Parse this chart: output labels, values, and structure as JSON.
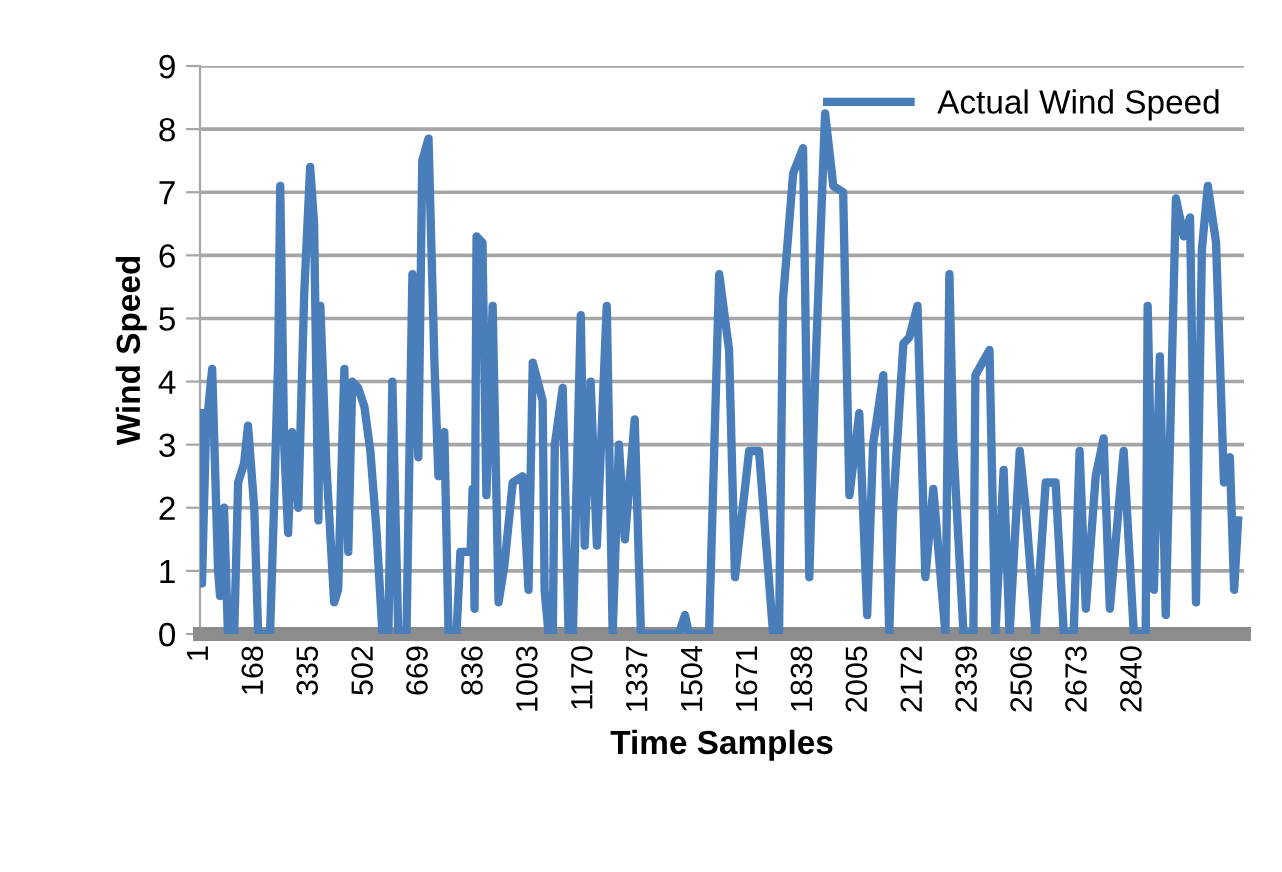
{
  "chart_data": {
    "type": "line",
    "xlabel": "Time Samples",
    "ylabel": "Wind Speed",
    "xlim": [
      1,
      3176
    ],
    "xticks": [
      1,
      168,
      335,
      502,
      669,
      836,
      1003,
      1170,
      1337,
      1504,
      1671,
      1838,
      2005,
      2172,
      2339,
      2506,
      2673,
      2840
    ],
    "ylim": [
      0,
      9
    ],
    "yticks": [
      0,
      1,
      2,
      3,
      4,
      5,
      6,
      7,
      8,
      9
    ],
    "grid": "y",
    "legend": "top right",
    "marker": "none",
    "line_style": "solid",
    "series": [
      {
        "name": "Actual Wind Speed",
        "color": "#4a7ebb",
        "x": [
          1,
          7,
          19,
          38,
          56,
          62,
          74,
          86,
          105,
          117,
          135,
          147,
          166,
          178,
          214,
          226,
          239,
          245,
          257,
          269,
          281,
          300,
          318,
          336,
          348,
          361,
          367,
          385,
          409,
          421,
          440,
          452,
          464,
          482,
          501,
          519,
          537,
          556,
          574,
          586,
          604,
          629,
          647,
          665,
          677,
          696,
          714,
          726,
          744,
          757,
          781,
          793,
          824,
          830,
          836,
          842,
          860,
          872,
          891,
          909,
          927,
          952,
          982,
          1000,
          1013,
          1043,
          1049,
          1061,
          1074,
          1080,
          1104,
          1122,
          1135,
          1159,
          1171,
          1189,
          1208,
          1238,
          1256,
          1275,
          1293,
          1323,
          1342,
          1457,
          1476,
          1488,
          1549,
          1580,
          1610,
          1628,
          1671,
          1701,
          1744,
          1762,
          1774,
          1805,
          1835,
          1854,
          1872,
          1902,
          1927,
          1957,
          1976,
          2006,
          2030,
          2048,
          2079,
          2097,
          2109,
          2140,
          2158,
          2183,
          2207,
          2231,
          2268,
          2280,
          2292,
          2323,
          2353,
          2359,
          2402,
          2420,
          2445,
          2463,
          2494,
          2512,
          2542,
          2573,
          2603,
          2628,
          2658,
          2676,
          2695,
          2725,
          2749,
          2768,
          2810,
          2841,
          2877,
          2883,
          2902,
          2920,
          2938,
          2969,
          2993,
          3012,
          3030,
          3048,
          3066,
          3091,
          3115,
          3133,
          3146,
          3158
        ],
        "values": [
          3.5,
          0.8,
          3.2,
          4.2,
          1.0,
          0.6,
          2.0,
          0,
          0,
          2.4,
          2.7,
          3.3,
          2.0,
          0,
          0,
          2.0,
          4.4,
          7.1,
          3.0,
          1.6,
          3.2,
          2.0,
          5.4,
          7.4,
          6.5,
          1.8,
          5.2,
          2.7,
          0.5,
          0.7,
          4.2,
          1.3,
          4.0,
          3.9,
          3.6,
          2.9,
          1.7,
          0,
          0,
          4.0,
          0,
          0,
          5.7,
          2.8,
          7.5,
          7.85,
          4.3,
          2.5,
          3.2,
          0,
          0,
          1.3,
          1.3,
          2.3,
          0.4,
          6.3,
          6.2,
          2.2,
          5.2,
          0.5,
          1.1,
          2.4,
          2.5,
          0.7,
          4.3,
          3.7,
          0.7,
          0,
          0,
          3.0,
          3.9,
          0,
          0,
          5.05,
          1.4,
          4.0,
          1.4,
          5.2,
          0,
          3.0,
          1.5,
          3.4,
          0,
          0,
          0.3,
          0,
          0,
          5.7,
          4.5,
          0.9,
          2.9,
          2.9,
          0,
          0,
          5.3,
          7.3,
          7.7,
          0.9,
          4.1,
          8.25,
          7.1,
          7.0,
          2.2,
          3.5,
          0.3,
          3.0,
          4.1,
          0,
          2.0,
          4.6,
          4.7,
          5.2,
          0.9,
          2.3,
          0,
          5.7,
          3.0,
          0,
          0,
          4.1,
          4.5,
          0,
          2.6,
          0,
          2.9,
          2.0,
          0,
          2.4,
          2.4,
          0,
          0,
          2.9,
          0.4,
          2.5,
          3.1,
          0.4,
          2.9,
          0,
          0,
          5.2,
          0.7,
          4.4,
          0.3,
          6.9,
          6.3,
          6.6,
          0.5,
          6.1,
          7.1,
          6.2,
          2.4,
          2.8,
          0.7,
          1.8
        ]
      }
    ]
  }
}
